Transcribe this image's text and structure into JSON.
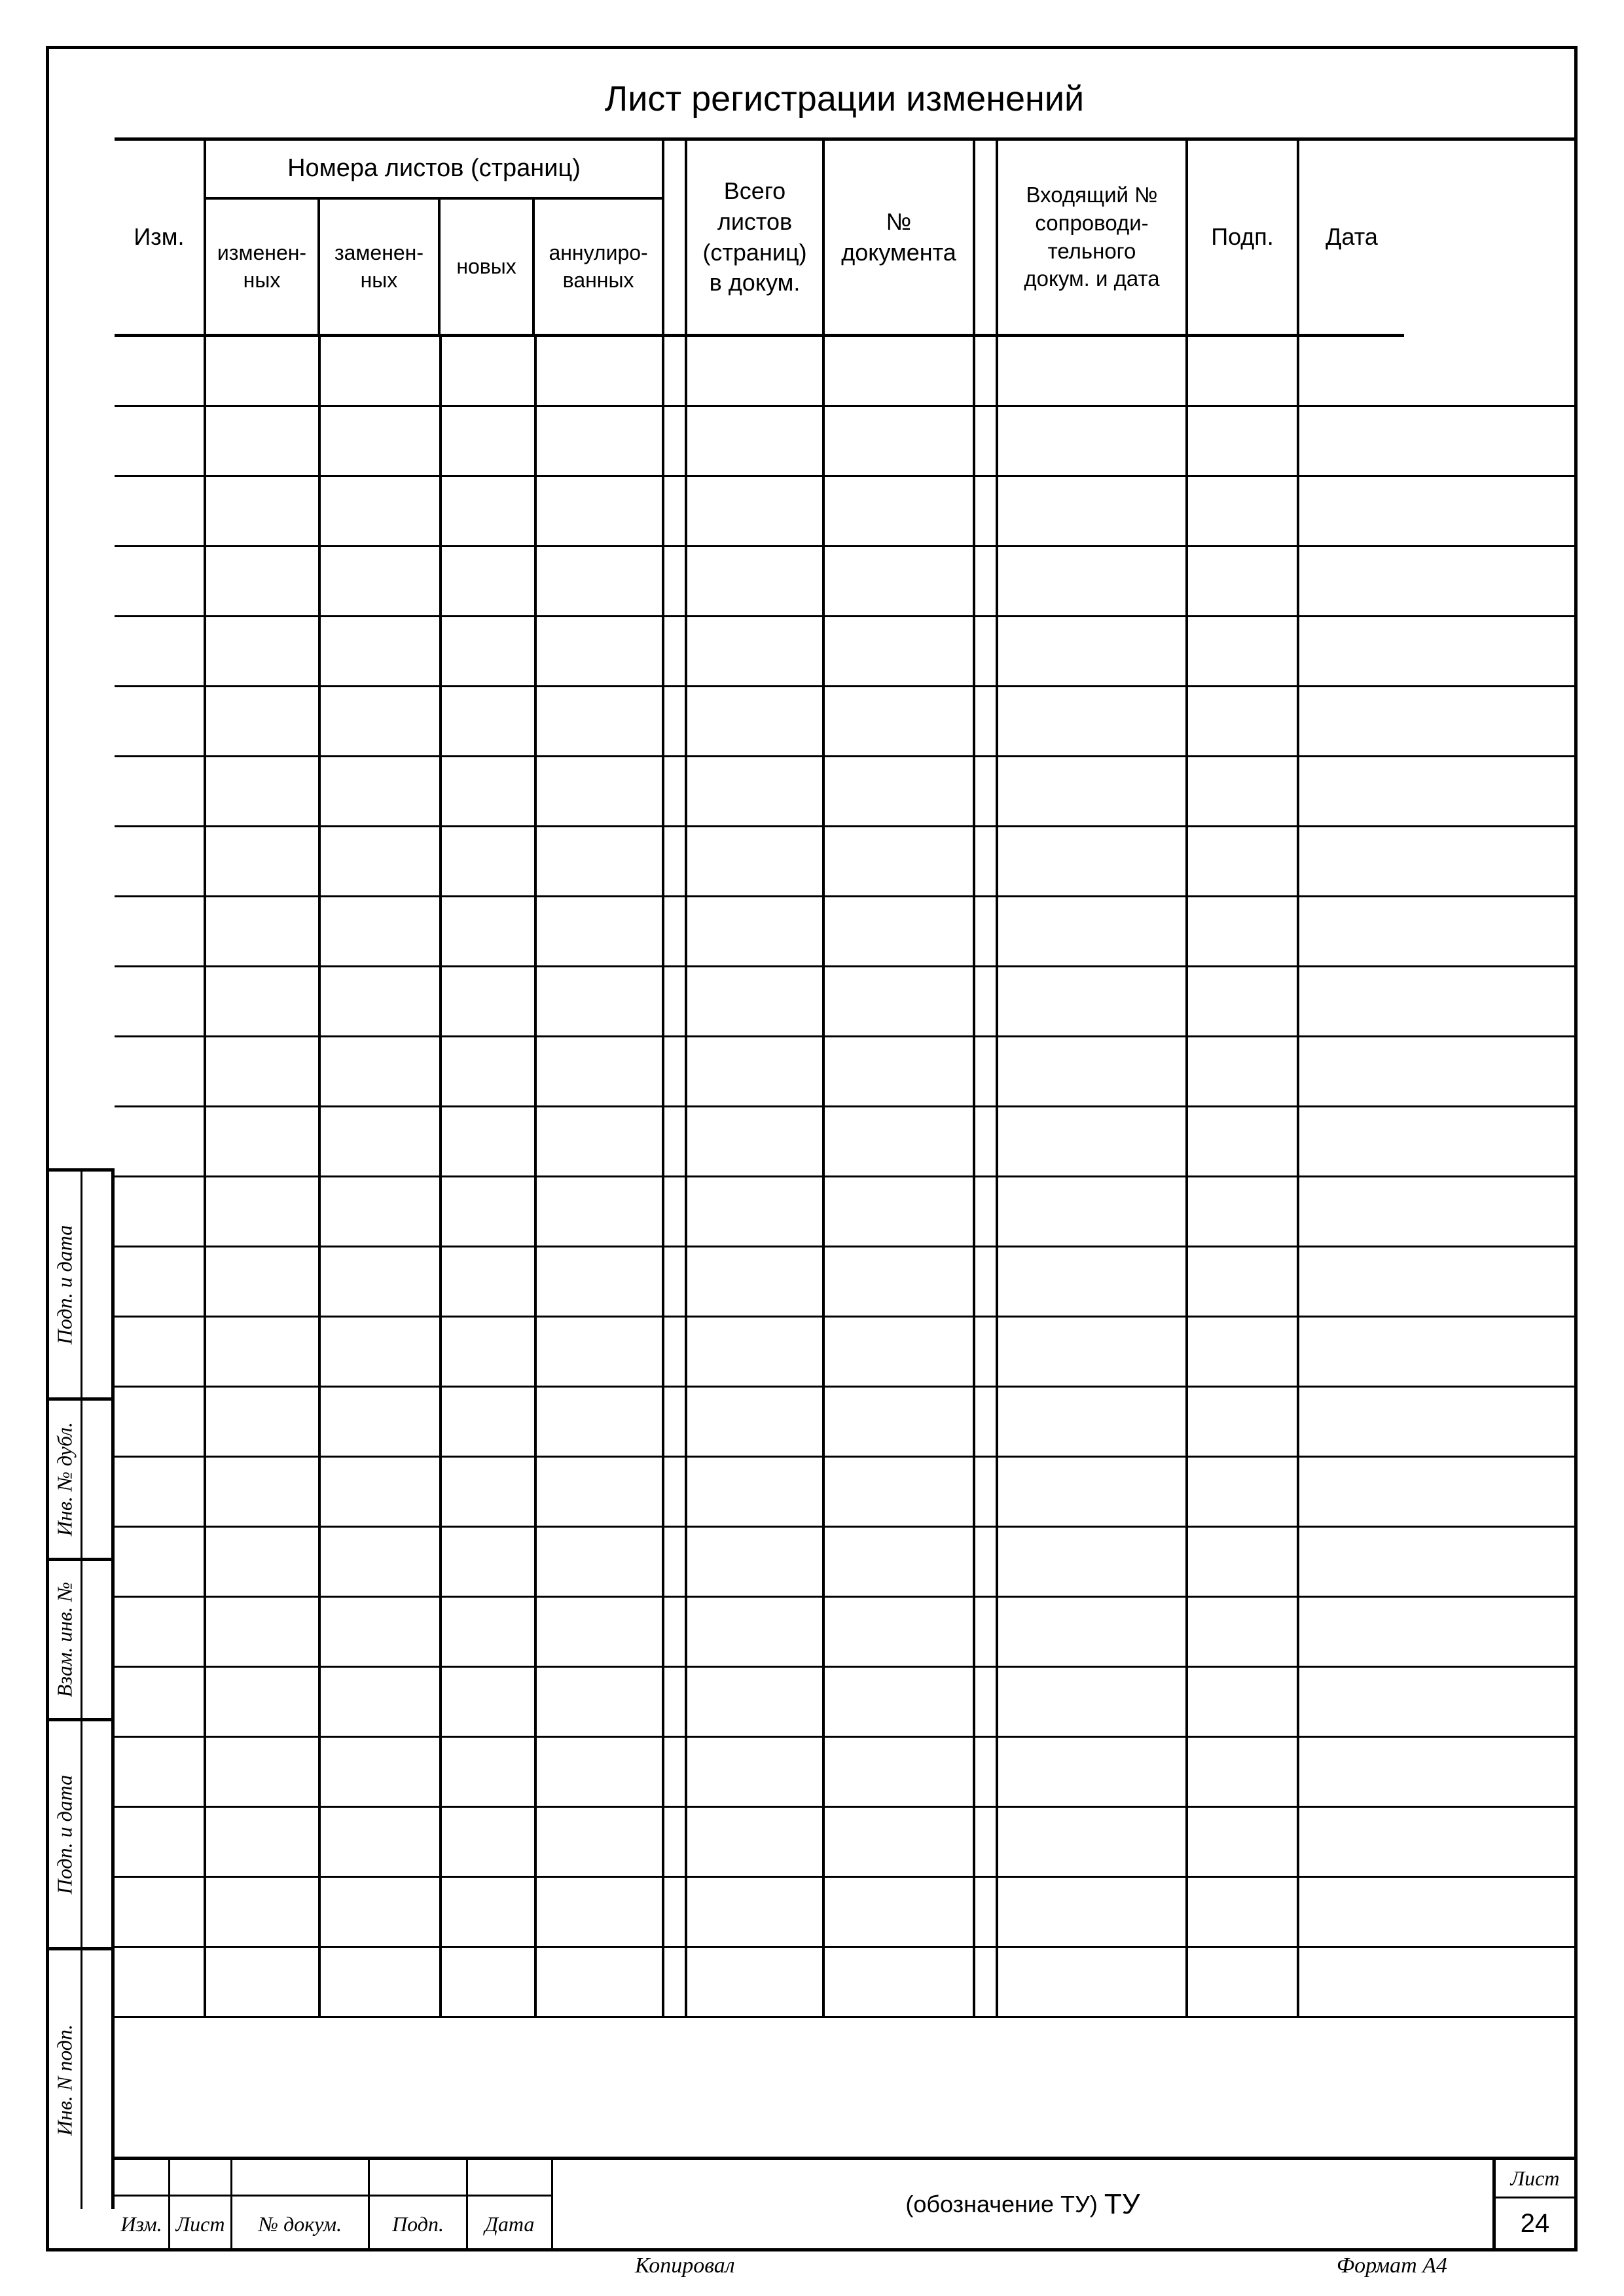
{
  "title": "Лист регистрации изменений",
  "headers": {
    "izm": "Изм.",
    "group_title": "Номера листов (страниц)",
    "sub1": "изменен-\nных",
    "sub2": "заменен-\nных",
    "sub3": "новых",
    "sub4": "аннулиро-\nванных",
    "total": "Всего\nлистов\n(страниц)\nв докум.",
    "docnum": "№\nдокумента",
    "incoming": "Входящий №\nсопроводи-\nтельного\nдокум. и дата",
    "sign": "Подп.",
    "date": "Дата"
  },
  "num_rows": 24,
  "footer": {
    "izm": "Изм.",
    "list": "Лист",
    "ndoc": "№ докум.",
    "podp": "Подп.",
    "data": "Дата",
    "title_prefix": "(обозначение ТУ)",
    "title_suffix": "ТУ",
    "list_label": "Лист",
    "page_num": "24"
  },
  "bottom": {
    "copy": "Копировал",
    "format": "Формат   А4"
  },
  "side_labels": [
    "Подп. и дата",
    "Инв. № дубл.",
    "Взам. инв. №",
    "Подп. и дата",
    "Инв. N подп."
  ],
  "side_heights": [
    350,
    245,
    245,
    350,
    400
  ],
  "colors": {
    "line": "#000000",
    "bg": "#ffffff"
  }
}
